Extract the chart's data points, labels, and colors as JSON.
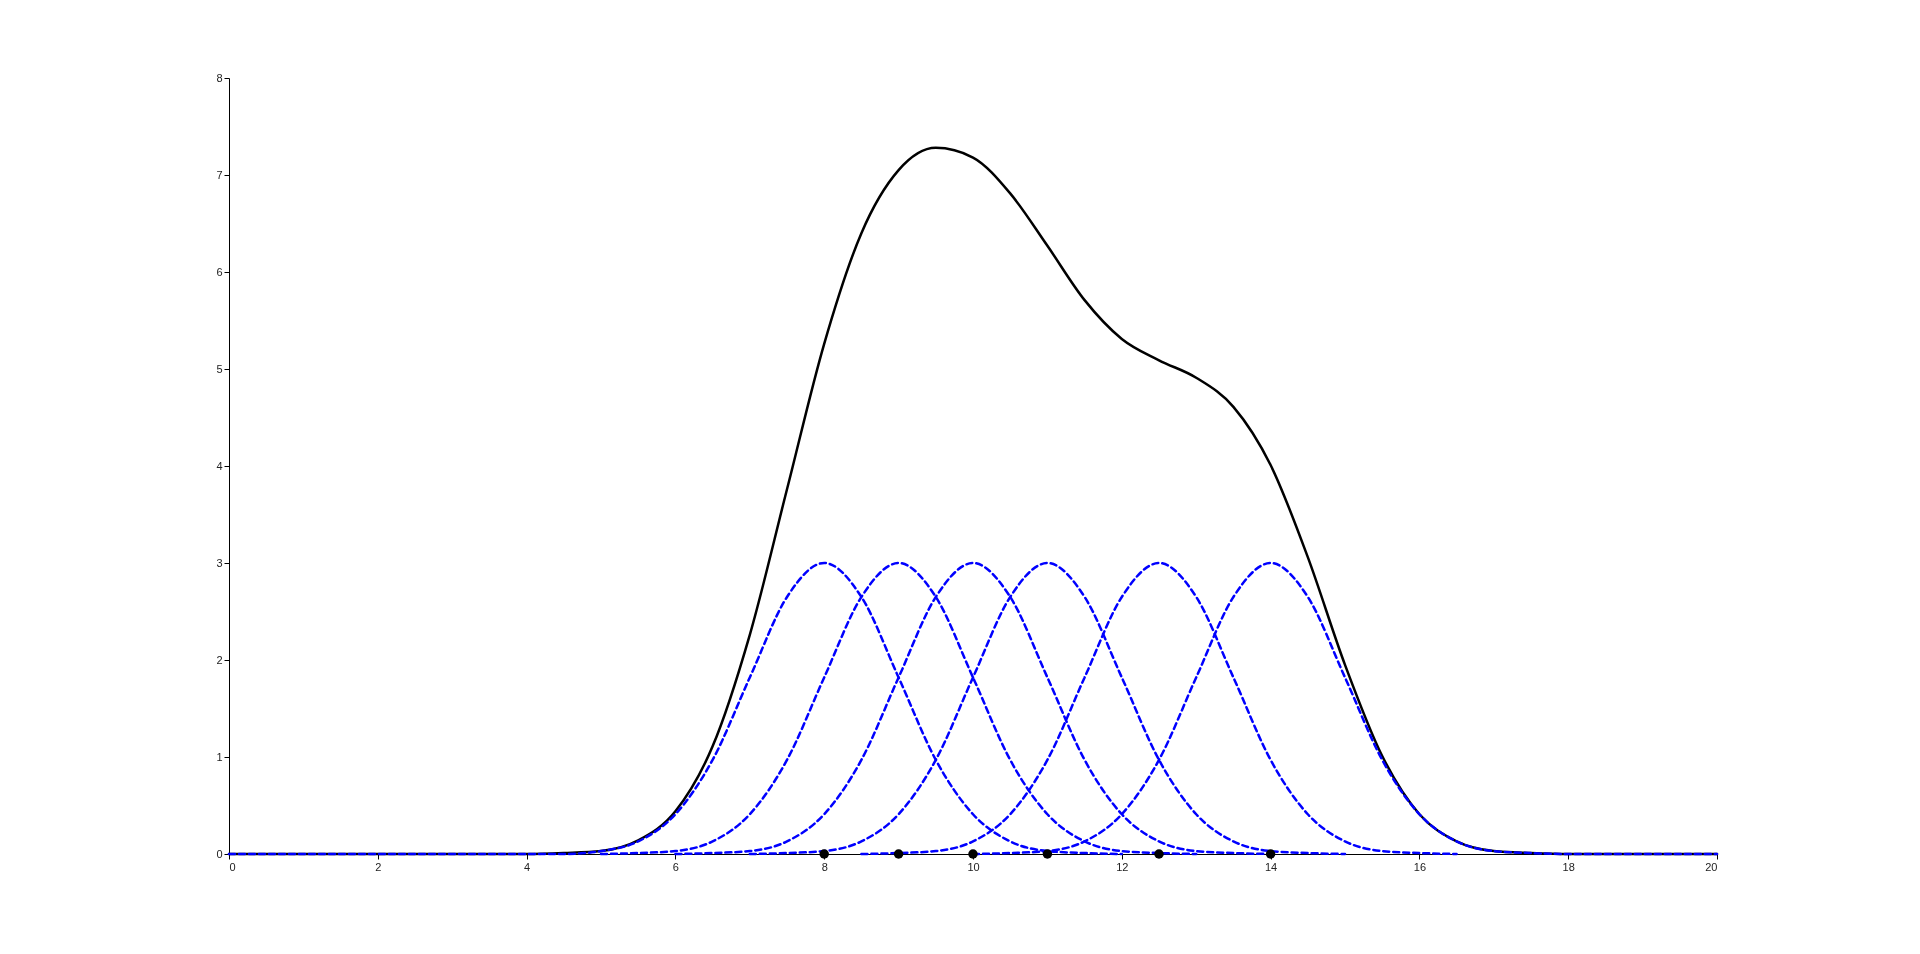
{
  "chart_data": {
    "type": "line",
    "xlim": [
      0,
      20
    ],
    "ylim": [
      0,
      8
    ],
    "xticks": [
      0,
      2,
      4,
      6,
      8,
      10,
      12,
      14,
      16,
      18,
      20
    ],
    "yticks": [
      0,
      1,
      2,
      3,
      4,
      5,
      6,
      7,
      8
    ],
    "grid": false,
    "series": [
      {
        "color": "#000000",
        "line_style": "solid",
        "x": [
          0,
          4,
          4.5,
          5,
          5.5,
          6,
          6.5,
          7,
          7.5,
          8,
          8.5,
          9,
          9.5,
          10,
          10.5,
          11,
          11.5,
          12,
          12.5,
          13,
          13.5,
          14,
          14.5,
          15,
          15.5,
          16,
          16.5,
          17,
          17.5,
          18,
          20
        ],
        "values": [
          0,
          0,
          0.01,
          0.03,
          0.14,
          0.44,
          1.11,
          2.26,
          3.76,
          5.26,
          6.4,
          7.05,
          7.28,
          7.18,
          6.81,
          6.27,
          5.71,
          5.31,
          5.09,
          4.91,
          4.61,
          4.01,
          3.06,
          1.95,
          1.01,
          0.41,
          0.13,
          0.03,
          0.01,
          0,
          0
        ]
      },
      {
        "color": "#0000ff",
        "line_style": "dashed",
        "x": [
          0,
          4,
          4.5,
          5,
          5.5,
          6,
          6.5,
          7,
          7.5,
          8,
          8.5,
          9,
          9.5,
          10,
          10.5,
          11,
          11.5,
          12
        ],
        "values": [
          0,
          0,
          0,
          0.03,
          0.13,
          0.41,
          0.97,
          1.82,
          2.65,
          3,
          2.65,
          1.82,
          0.97,
          0.41,
          0.13,
          0.03,
          0.01,
          0
        ]
      },
      {
        "color": "#0000ff",
        "line_style": "dashed",
        "x": [
          5,
          5.5,
          6,
          6.5,
          7,
          7.5,
          8,
          8.5,
          9,
          9.5,
          10,
          10.5,
          11,
          11.5,
          12,
          12.5,
          13
        ],
        "values": [
          0,
          0.01,
          0.03,
          0.13,
          0.41,
          0.97,
          1.82,
          2.65,
          3,
          2.65,
          1.82,
          0.97,
          0.41,
          0.13,
          0.03,
          0.01,
          0
        ]
      },
      {
        "color": "#0000ff",
        "line_style": "dashed",
        "x": [
          6,
          6.5,
          7,
          7.5,
          8,
          8.5,
          9,
          9.5,
          10,
          10.5,
          11,
          11.5,
          12,
          12.5,
          13,
          13.5,
          14
        ],
        "values": [
          0,
          0.01,
          0.03,
          0.13,
          0.41,
          0.97,
          1.82,
          2.65,
          3,
          2.65,
          1.82,
          0.97,
          0.41,
          0.13,
          0.03,
          0.01,
          0
        ]
      },
      {
        "color": "#0000ff",
        "line_style": "dashed",
        "x": [
          7,
          7.5,
          8,
          8.5,
          9,
          9.5,
          10,
          10.5,
          11,
          11.5,
          12,
          12.5,
          13,
          13.5,
          14,
          14.5,
          15
        ],
        "values": [
          0,
          0.01,
          0.03,
          0.13,
          0.41,
          0.97,
          1.82,
          2.65,
          3,
          2.65,
          1.82,
          0.97,
          0.41,
          0.13,
          0.03,
          0.01,
          0
        ]
      },
      {
        "color": "#0000ff",
        "line_style": "dashed",
        "x": [
          8.5,
          9,
          9.5,
          10,
          10.5,
          11,
          11.5,
          12,
          12.5,
          13,
          13.5,
          14,
          14.5,
          15,
          15.5,
          16,
          16.5
        ],
        "values": [
          0,
          0.01,
          0.03,
          0.13,
          0.41,
          0.97,
          1.82,
          2.65,
          3,
          2.65,
          1.82,
          0.97,
          0.41,
          0.13,
          0.03,
          0.01,
          0
        ]
      },
      {
        "color": "#0000ff",
        "line_style": "dashed",
        "x": [
          10,
          10.5,
          11,
          11.5,
          12,
          12.5,
          13,
          13.5,
          14,
          14.5,
          15,
          15.5,
          16,
          16.5,
          17,
          17.5,
          18,
          20
        ],
        "values": [
          0,
          0.01,
          0.03,
          0.13,
          0.41,
          0.97,
          1.82,
          2.65,
          3,
          2.65,
          1.82,
          0.97,
          0.41,
          0.13,
          0.03,
          0.01,
          0,
          0
        ]
      },
      {
        "type": "scatter",
        "color": "#000000",
        "marker": "circle",
        "x": [
          8,
          9,
          10,
          11,
          12.5,
          14
        ],
        "values": [
          0,
          0,
          0,
          0,
          0,
          0
        ]
      }
    ]
  }
}
